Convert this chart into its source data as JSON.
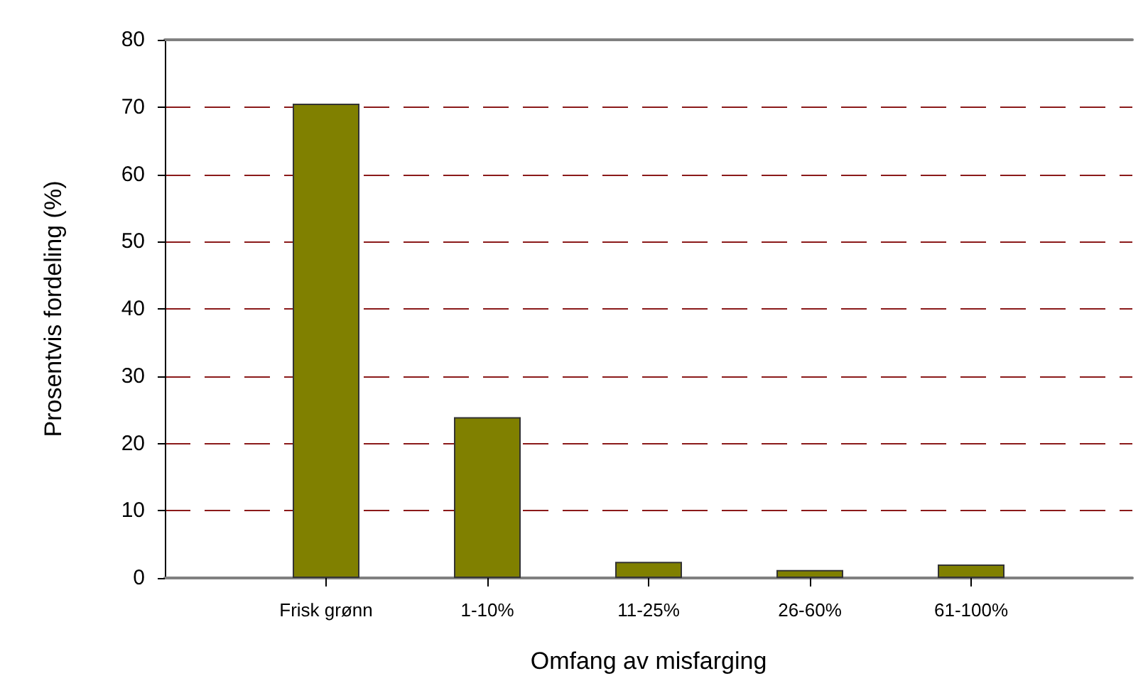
{
  "chart_data": {
    "type": "bar",
    "xlabel": "Omfang av misfarging",
    "ylabel": "Prosentvis fordeling (%)",
    "categories": [
      null,
      "Frisk grønn",
      "1-10%",
      "11-25%",
      "26-60%",
      "61-100%",
      null
    ],
    "values": [
      null,
      70.5,
      23.9,
      2.4,
      1.2,
      2.0,
      null
    ],
    "color": "#808000",
    "ylim": [
      0,
      80
    ],
    "yticks": [
      0,
      10,
      20,
      30,
      40,
      50,
      60,
      70,
      80
    ],
    "grid": "y"
  }
}
